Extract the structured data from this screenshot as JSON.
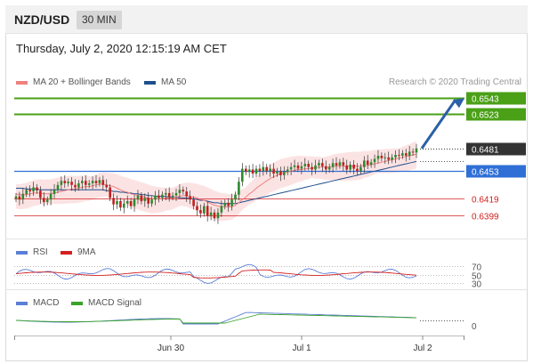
{
  "header": {
    "symbol": "NZD/USD",
    "timeframe": "30 MIN"
  },
  "datetime": "Thursday, July 2, 2020 12:15:19 AM CET",
  "legend": {
    "ma20": {
      "label": "MA 20 + Bollinger Bands",
      "color": "#f08080"
    },
    "ma50": {
      "label": "MA 50",
      "color": "#1f4e8c"
    }
  },
  "credit": "Research © 2020 Trading Central",
  "rsi_legend": {
    "rsi": "RSI",
    "rsi_color": "#5b7fd6",
    "ma": "9MA",
    "ma_color": "#d42020"
  },
  "macd_legend": {
    "macd": "MACD",
    "macd_color": "#5b7fd6",
    "signal": "MACD Signal",
    "signal_color": "#3aa32a"
  },
  "chart_data": [
    {
      "type": "candlestick",
      "pair": "NZD/USD",
      "interval": "30 MIN",
      "ylim": [
        0.637,
        0.6552
      ],
      "xticks": [
        "Jun 30",
        "Jul 1",
        "Jul 2"
      ],
      "levels": [
        {
          "value": 0.6543,
          "label": "0.6543",
          "kind": "resistance",
          "color": "#4aa017"
        },
        {
          "value": 0.6523,
          "label": "0.6523",
          "kind": "resistance",
          "color": "#4aa017"
        },
        {
          "value": 0.6481,
          "label": "0.6481",
          "kind": "last",
          "color": "#333333"
        },
        {
          "value": 0.6453,
          "label": "0.6453",
          "kind": "pivot",
          "color": "#2f6fd6"
        },
        {
          "value": 0.6419,
          "label": "0.6419",
          "kind": "support",
          "color": "#d42020"
        },
        {
          "value": 0.6399,
          "label": "0.6399",
          "kind": "support",
          "color": "#d42020"
        }
      ],
      "close": [
        0.6422,
        0.6418,
        0.6425,
        0.643,
        0.6428,
        0.6433,
        0.6429,
        0.642,
        0.6415,
        0.6418,
        0.6425,
        0.643,
        0.6436,
        0.6441,
        0.6438,
        0.644,
        0.6436,
        0.6433,
        0.6438,
        0.6441,
        0.6436,
        0.6438,
        0.6441,
        0.6438,
        0.6442,
        0.6436,
        0.6433,
        0.642,
        0.6412,
        0.6416,
        0.6408,
        0.6413,
        0.6416,
        0.641,
        0.6418,
        0.6423,
        0.6416,
        0.642,
        0.6413,
        0.6418,
        0.6423,
        0.642,
        0.6424,
        0.6426,
        0.6421,
        0.6423,
        0.6426,
        0.643,
        0.6428,
        0.6422,
        0.6418,
        0.641,
        0.6405,
        0.6401,
        0.641,
        0.6398,
        0.6402,
        0.6395,
        0.6402,
        0.641,
        0.6414,
        0.641,
        0.6418,
        0.6424,
        0.644,
        0.6456,
        0.6452,
        0.6455,
        0.645,
        0.6456,
        0.6453,
        0.6458,
        0.6453,
        0.6456,
        0.645,
        0.6453,
        0.6448,
        0.6452,
        0.6455,
        0.6458,
        0.646,
        0.6456,
        0.6459,
        0.6462,
        0.6458,
        0.6455,
        0.646,
        0.6463,
        0.6459,
        0.6455,
        0.6458,
        0.6463,
        0.646,
        0.6464,
        0.646,
        0.6455,
        0.6461,
        0.6456,
        0.6453,
        0.6458,
        0.6466,
        0.6461,
        0.6464,
        0.6468,
        0.6472,
        0.6469,
        0.647,
        0.6467,
        0.647,
        0.6473,
        0.6472,
        0.6475,
        0.6472,
        0.6477,
        0.6476,
        0.6481
      ],
      "ma20": [
        0.6425,
        0.6424,
        0.6424,
        0.6424,
        0.6425,
        0.6426,
        0.6426,
        0.6426,
        0.6425,
        0.6425,
        0.6425,
        0.6426,
        0.6427,
        0.6428,
        0.6429,
        0.643,
        0.6431,
        0.6431,
        0.6432,
        0.6433,
        0.6434,
        0.6434,
        0.6435,
        0.6436,
        0.6437,
        0.6437,
        0.6436,
        0.6435,
        0.6434,
        0.6432,
        0.643,
        0.6428,
        0.6427,
        0.6425,
        0.6424,
        0.6423,
        0.6422,
        0.6421,
        0.642,
        0.6419,
        0.6419,
        0.6419,
        0.6419,
        0.642,
        0.642,
        0.642,
        0.6421,
        0.6422,
        0.6423,
        0.6423,
        0.6422,
        0.6421,
        0.642,
        0.6418,
        0.6417,
        0.6415,
        0.6413,
        0.6411,
        0.641,
        0.6409,
        0.6409,
        0.6409,
        0.6409,
        0.6411,
        0.6414,
        0.6418,
        0.6421,
        0.6425,
        0.6428,
        0.6432,
        0.6435,
        0.6438,
        0.6441,
        0.6444,
        0.6446,
        0.6448,
        0.645,
        0.6451,
        0.6452,
        0.6453,
        0.6454,
        0.6455,
        0.6455,
        0.6456,
        0.6456,
        0.6457,
        0.6457,
        0.6458,
        0.6458,
        0.6458,
        0.6458,
        0.6459,
        0.6459,
        0.6459,
        0.6459,
        0.6459,
        0.6459,
        0.6459,
        0.6459,
        0.6459,
        0.646,
        0.646,
        0.6461,
        0.6462,
        0.6463,
        0.6464,
        0.6465,
        0.6466,
        0.6467,
        0.6468,
        0.6469,
        0.647,
        0.6471,
        0.6472,
        0.6473,
        0.6474
      ],
      "ma50": [
        0.6432,
        0.6432,
        0.6432,
        0.6431,
        0.6431,
        0.6431,
        0.6431,
        0.643,
        0.643,
        0.643,
        0.643,
        0.643,
        0.643,
        0.643,
        0.643,
        0.643,
        0.643,
        0.643,
        0.643,
        0.643,
        0.643,
        0.643,
        0.643,
        0.643,
        0.643,
        0.643,
        0.6429,
        0.6429,
        0.6428,
        0.6428,
        0.6427,
        0.6427,
        0.6426,
        0.6426,
        0.6425,
        0.6425,
        0.6424,
        0.6424,
        0.6423,
        0.6423,
        0.6422,
        0.6422,
        0.6422,
        0.6422,
        0.6421,
        0.6421,
        0.6421,
        0.642,
        0.642,
        0.642,
        0.6419,
        0.6419,
        0.6418,
        0.6417,
        0.6417,
        0.6416,
        0.6415,
        0.6414,
        0.6414,
        0.6413,
        0.6413,
        0.6413,
        0.6413,
        0.6413,
        0.6414,
        0.6415,
        0.6416,
        0.6417,
        0.6418,
        0.6419,
        0.642,
        0.6421,
        0.6422,
        0.6423,
        0.6424,
        0.6425,
        0.6426,
        0.6427,
        0.6428,
        0.6429,
        0.643,
        0.6431,
        0.6432,
        0.6433,
        0.6434,
        0.6435,
        0.6436,
        0.6437,
        0.6438,
        0.6439,
        0.644,
        0.6441,
        0.6442,
        0.6443,
        0.6444,
        0.6445,
        0.6446,
        0.6447,
        0.6448,
        0.6449,
        0.645,
        0.6451,
        0.6452,
        0.6453,
        0.6454,
        0.6455,
        0.6456,
        0.6457,
        0.6458,
        0.6459,
        0.646,
        0.6461,
        0.6462,
        0.6463,
        0.6464,
        0.6465
      ]
    },
    {
      "type": "line",
      "name": "RSI",
      "ylim": [
        30,
        70
      ],
      "yticks": [
        "70",
        "50",
        "30"
      ]
    },
    {
      "type": "line",
      "name": "MACD",
      "yticks": [
        "0"
      ]
    }
  ]
}
